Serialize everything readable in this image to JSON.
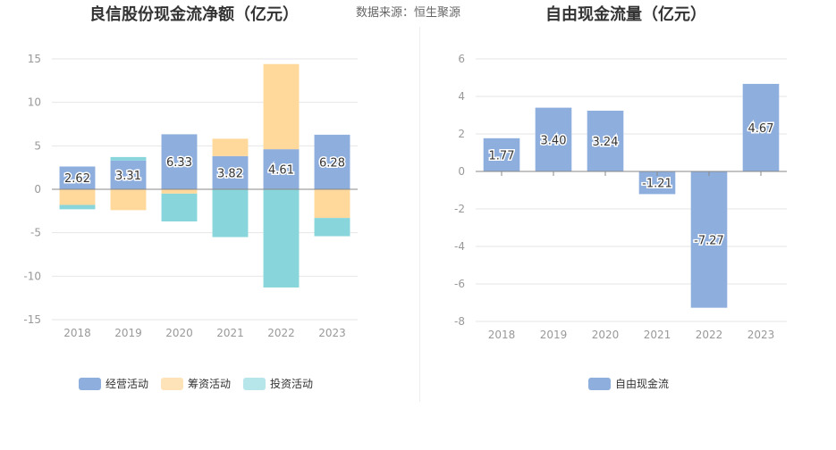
{
  "header": {
    "left_title": "良信股份现金流净额（亿元）",
    "source": "数据来源：恒生聚源",
    "right_title": "自由现金流量（亿元）"
  },
  "colors": {
    "operating": "#8eaedd",
    "financing": "#ffd99b",
    "investing": "#88d6db",
    "free_cash_flow": "#8eaedd"
  },
  "legend_left": {
    "operating": "经营活动",
    "financing": "筹资活动",
    "investing": "投资活动"
  },
  "legend_right": {
    "free_cash_flow": "自由现金流"
  },
  "chart_data": [
    {
      "type": "bar",
      "stacked": true,
      "title": "良信股份现金流净额（亿元）",
      "categories": [
        "2018",
        "2019",
        "2020",
        "2021",
        "2022",
        "2023"
      ],
      "ylim": [
        -15,
        15
      ],
      "yticks": [
        15,
        10,
        5,
        0,
        -5,
        -10,
        -15
      ],
      "grid": true,
      "legend_position": "bottom",
      "series": [
        {
          "name": "经营活动",
          "values": [
            2.62,
            3.31,
            6.33,
            3.82,
            4.61,
            6.28
          ],
          "labels": [
            "2.62",
            "3.31",
            "6.33",
            "3.82",
            "4.61",
            "6.28"
          ]
        },
        {
          "name": "筹资活动",
          "values": [
            -1.8,
            -2.4,
            -0.5,
            2.0,
            9.8,
            -3.3
          ]
        },
        {
          "name": "投资活动",
          "values": [
            -0.5,
            0.4,
            -3.2,
            -5.5,
            -11.3,
            -2.1
          ]
        }
      ]
    },
    {
      "type": "bar",
      "title": "自由现金流量（亿元）",
      "categories": [
        "2018",
        "2019",
        "2020",
        "2021",
        "2022",
        "2023"
      ],
      "ylim": [
        -8,
        6
      ],
      "yticks": [
        6,
        4,
        2,
        0,
        -2,
        -4,
        -6,
        -8
      ],
      "grid": true,
      "legend_position": "bottom",
      "series": [
        {
          "name": "自由现金流",
          "values": [
            1.77,
            3.4,
            3.24,
            -1.21,
            -7.27,
            4.67
          ],
          "labels": [
            "1.77",
            "3.40",
            "3.24",
            "-1.21",
            "-7.27",
            "4.67"
          ]
        }
      ]
    }
  ]
}
